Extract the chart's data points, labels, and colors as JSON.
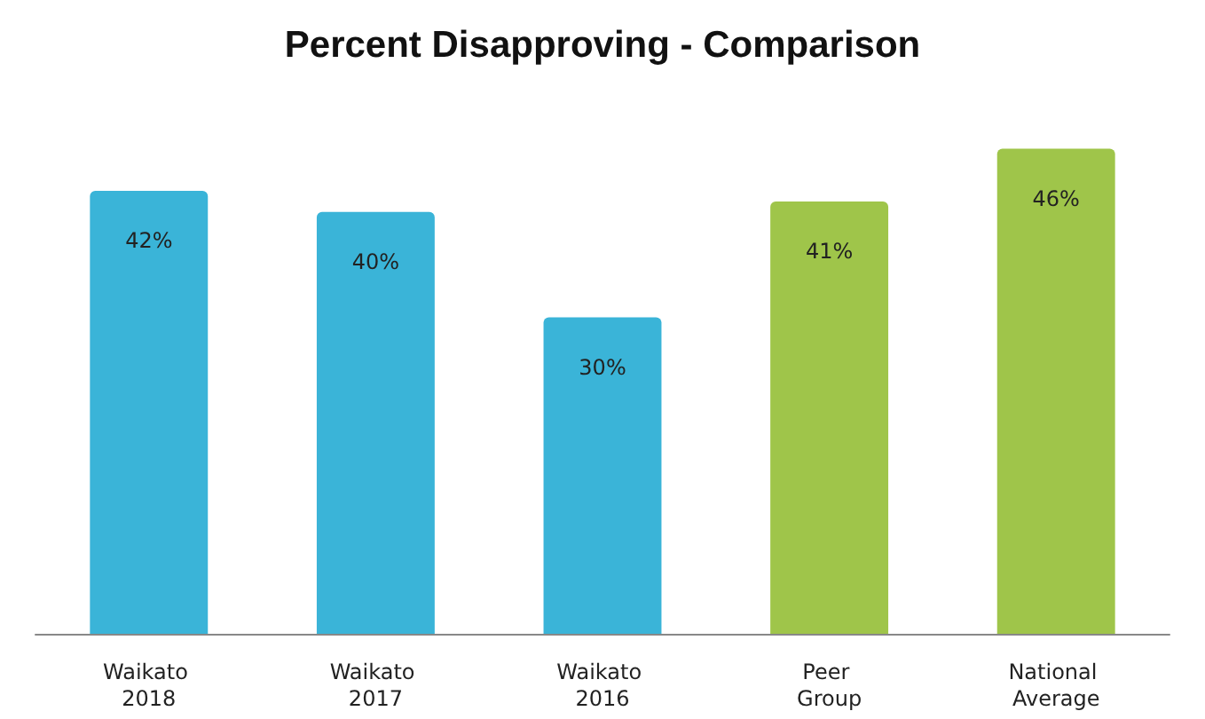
{
  "chart_data": {
    "type": "bar",
    "title": "Percent Disapproving - Comparison",
    "categories": [
      "Waikato 2018",
      "Waikato 2017",
      "Waikato 2016",
      "Peer Group",
      "National Average"
    ],
    "values": [
      42,
      40,
      30,
      41,
      46
    ],
    "colors": [
      "#3ab4d8",
      "#3ab4d8",
      "#3ab4d8",
      "#9fc54a",
      "#9fc54a"
    ],
    "value_labels": [
      "42%",
      "40%",
      "30%",
      "41%",
      "46%"
    ],
    "grid": false
  }
}
